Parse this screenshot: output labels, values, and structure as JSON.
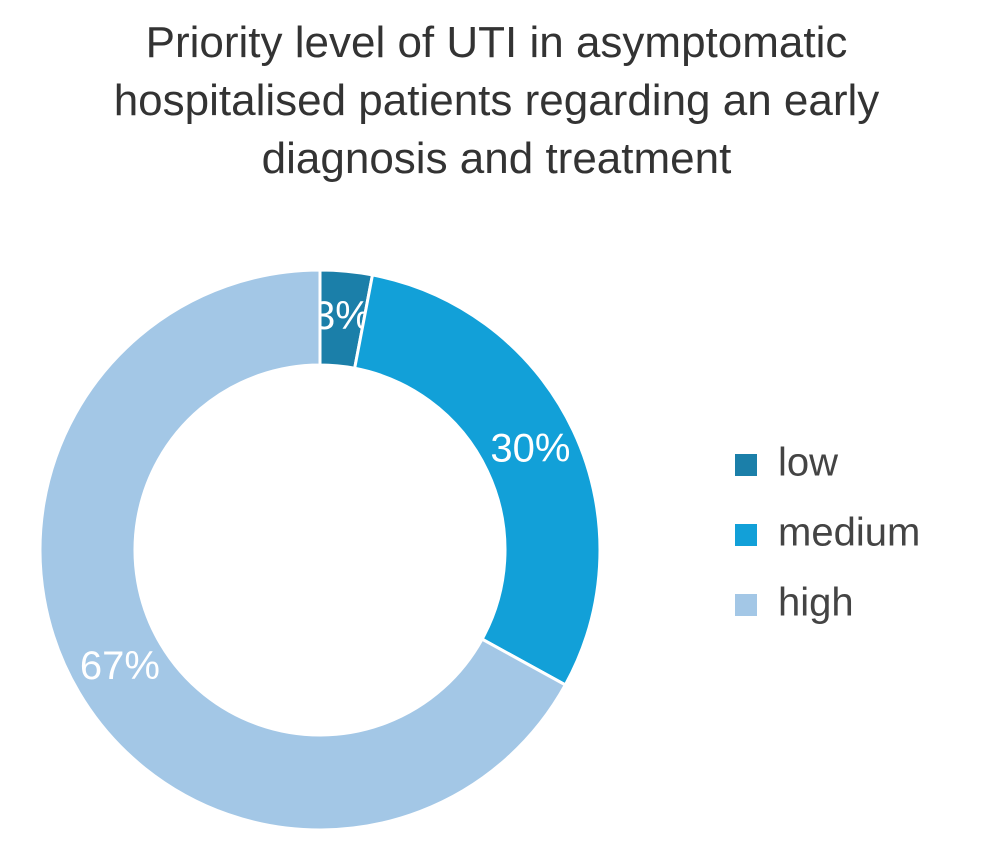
{
  "chart_data": {
    "type": "donut",
    "title": "Priority level of UTI in asymptomatic hospitalised patients regarding an early diagnosis and treatment",
    "categories": [
      "low",
      "medium",
      "high"
    ],
    "values": [
      3,
      30,
      67
    ],
    "value_labels": [
      "3%",
      "30%",
      "67%"
    ],
    "colors": [
      "#1b7fa9",
      "#12a0d8",
      "#a3c7e6"
    ],
    "legend": "right"
  }
}
